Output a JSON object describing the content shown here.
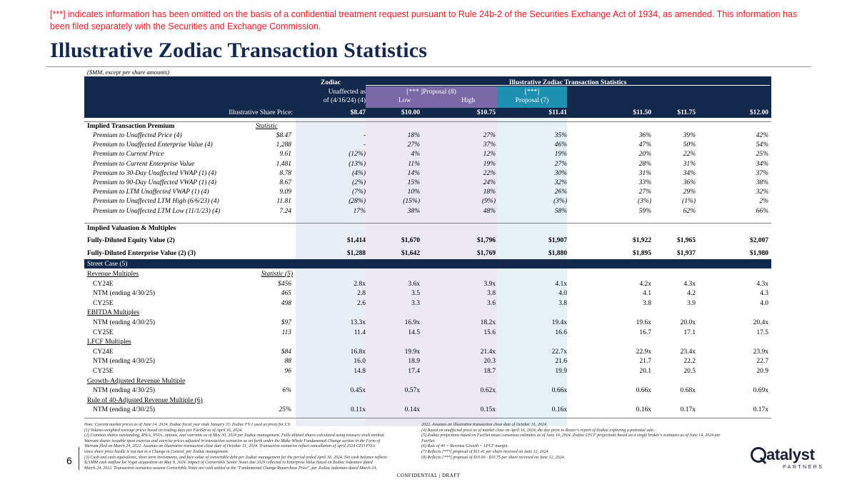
{
  "disclaimer": "[***] indicates information has been omitted on the basis of a confidential treatment request pursuant to Rule 24b-2 of the Securities Exchange Act of 1934, as amended. This information has been filed separately with the Securities and Exchange Commission.",
  "title": "Illustrative Zodiac Transaction Statistics",
  "units": "($MM, except per share amounts)",
  "header": {
    "zodiac": "Zodiac",
    "group": "Illustrative Zodiac Transaction Statistics",
    "unaffected_1": "Unaffected as",
    "unaffected_2": "of (4/16/24) (4)",
    "proposal8": "[*** ]Proposal (8)",
    "low": "Low",
    "high": "High",
    "proposal7_1": "[***]",
    "proposal7_2": "Proposal (7)",
    "price_label": "Illustrative Share Price:",
    "prices": [
      "$8.47",
      "$10.00",
      "$10.75",
      "$11.41",
      "$11.50",
      "$11.75",
      "$12.00"
    ]
  },
  "premium": {
    "title": "Implied Transaction Premium",
    "stat_label": "Statistic",
    "rows": [
      {
        "label": "Premium to Unaffected Price (4)",
        "stat": "$8.47",
        "vals": [
          "-",
          "18%",
          "27%",
          "35%",
          "36%",
          "39%",
          "42%"
        ]
      },
      {
        "label": "Premium to Unaffected Enterprise Value (4)",
        "stat": "1,288",
        "vals": [
          "-",
          "27%",
          "37%",
          "46%",
          "47%",
          "50%",
          "54%"
        ]
      },
      {
        "label": "Premium to Current Price",
        "stat": "9.61",
        "vals": [
          "(12%)",
          "4%",
          "12%",
          "19%",
          "20%",
          "22%",
          "25%"
        ]
      },
      {
        "label": "Premium to Current Enterprise Value",
        "stat": "1,481",
        "vals": [
          "(13%)",
          "11%",
          "19%",
          "27%",
          "28%",
          "31%",
          "34%"
        ]
      },
      {
        "label": "Premium to 30-Day Unaffected VWAP (1) (4)",
        "stat": "8.78",
        "vals": [
          "(4%)",
          "14%",
          "22%",
          "30%",
          "31%",
          "34%",
          "37%"
        ]
      },
      {
        "label": "Premium to 90-Day Unaffected VWAP (1) (4)",
        "stat": "8.67",
        "vals": [
          "(2%)",
          "15%",
          "24%",
          "32%",
          "33%",
          "36%",
          "38%"
        ]
      },
      {
        "label": "Premium to LTM Unaffected VWAP (1) (4)",
        "stat": "9.09",
        "vals": [
          "(7%)",
          "10%",
          "18%",
          "26%",
          "27%",
          "29%",
          "32%"
        ]
      },
      {
        "label": "Premium to Unaffected LTM High (6/6/23) (4)",
        "stat": "11.81",
        "vals": [
          "(28%)",
          "(15%)",
          "(9%)",
          "(3%)",
          "(3%)",
          "(1%)",
          "2%"
        ]
      },
      {
        "label": "Premium to Unaffected LTM Low (11/1/23) (4)",
        "stat": "7.24",
        "vals": [
          "17%",
          "38%",
          "48%",
          "58%",
          "59%",
          "62%",
          "66%"
        ]
      }
    ]
  },
  "valuation": {
    "title": "Implied Valuation & Multiples",
    "rows": [
      {
        "label": "Fully-Diluted Equity Value (2)",
        "vals": [
          "$1,414",
          "$1,670",
          "$1,796",
          "$1,907",
          "$1,922",
          "$1,965",
          "$2,007"
        ]
      },
      {
        "label": "Fully-Diluted Enterprise Value (2) (3)",
        "vals": [
          "$1,288",
          "$1,642",
          "$1,769",
          "$1,880",
          "$1,895",
          "$1,937",
          "$1,980"
        ]
      }
    ]
  },
  "street": {
    "title": "Street Case (5)",
    "groups": [
      {
        "title": "Revenue Multiples",
        "stat_label": "Statistic (5)",
        "rows": [
          {
            "label": "CY24E",
            "stat": "$456",
            "vals": [
              "2.8x",
              "3.6x",
              "3.9x",
              "4.1x",
              "4.2x",
              "4.3x",
              "4.3x"
            ]
          },
          {
            "label": "NTM (ending 4/30/25)",
            "stat": "465",
            "vals": [
              "2.8",
              "3.5",
              "3.8",
              "4.0",
              "4.1",
              "4.2",
              "4.3"
            ]
          },
          {
            "label": "CY25E",
            "stat": "498",
            "vals": [
              "2.6",
              "3.3",
              "3.6",
              "3.8",
              "3.8",
              "3.9",
              "4.0"
            ]
          }
        ]
      },
      {
        "title": "EBITDA Multiples",
        "stat_label": "",
        "rows": [
          {
            "label": "NTM (ending 4/30/25)",
            "stat": "$97",
            "vals": [
              "13.3x",
              "16.9x",
              "18.2x",
              "19.4x",
              "19.6x",
              "20.0x",
              "20.4x"
            ]
          },
          {
            "label": "CY25E",
            "stat": "113",
            "vals": [
              "11.4",
              "14.5",
              "15.6",
              "16.6",
              "16.7",
              "17.1",
              "17.5"
            ]
          }
        ]
      },
      {
        "title": "LFCF Multiples",
        "stat_label": "",
        "rows": [
          {
            "label": "CY24E",
            "stat": "$84",
            "vals": [
              "16.8x",
              "19.9x",
              "21.4x",
              "22.7x",
              "22.9x",
              "23.4x",
              "23.9x"
            ]
          },
          {
            "label": "NTM (ending 4/30/25)",
            "stat": "88",
            "vals": [
              "16.0",
              "18.9",
              "20.3",
              "21.6",
              "21.7",
              "22.2",
              "22.7"
            ]
          },
          {
            "label": "CY25E",
            "stat": "96",
            "vals": [
              "14.8",
              "17.4",
              "18.7",
              "19.9",
              "20.1",
              "20.5",
              "20.9"
            ]
          }
        ]
      },
      {
        "title": "Growth-Adjusted Revenue Multiple",
        "stat_label": "",
        "rows": [
          {
            "label": "NTM (ending 4/30/25)",
            "stat": "6%",
            "vals": [
              "0.45x",
              "0.57x",
              "0.62x",
              "0.66x",
              "0.66x",
              "0.68x",
              "0.69x"
            ]
          }
        ]
      },
      {
        "title": "Rule of 40-Adjusted Revenue Multiple (6)",
        "stat_label": "",
        "rows": [
          {
            "label": "NTM (ending 4/30/25)",
            "stat": "25%",
            "vals": [
              "0.11x",
              "0.14x",
              "0.15x",
              "0.16x",
              "0.16x",
              "0.17x",
              "0.17x"
            ]
          }
        ]
      }
    ]
  },
  "notes_left": [
    "Note:  Current market prices as of June 14, 2024. Zodiac fiscal year ends January 31. Zodiac FY-1 used as proxy for CY.",
    "(1)  Volume-weighted average prices based on trading days per FactSet as of April 16, 2024.",
    "(2) Common shares outstanding, RSUs, PSUs, options, and warrants as of May 30, 2024 per Zodiac management. Fully-diluted shares calculated using treasury stock method.",
    "Warrant shares issuable upon exercise and exercise prices adjusted in transaction scenarios as set forth under the Make-Whole Fundamental Change section in the Form of",
    "Warrant filed on March 24, 2022. Assumes an illustrative transaction close date of October 31, 2024. Transaction scenarios reflect cancellation of April 2024 CEO PSUs",
    "since share price hurdle is not met in a Change in Control, per Zodiac management.",
    "(3) Cash and cash equivalents, short term investments, and face value of convertible debt per Zodiac management for the period ended April 30, 2024. Net cash balance reflects",
    "$21MM cash outflow for Vygai acquisition on May 9, 2024. Impact of Convertible Senior Notes due 2029 reflected in Enterprise Value based on Zodiac indenture dated",
    "March 24, 2022. Transaction scenarios assume Convertible Notes are cash settled at the \"Fundamental Change Repurchase Price\", per Zodiac indenture dated March 24,"
  ],
  "notes_right": [
    "2022. Assumes an illustrative transaction close date of October 31, 2024.",
    "(4) Based on unaffected price as of market close on April 16, 2024, the day prior to Reuter's report of Zodiac exploring a potential sale.",
    "(5) Zodiac projections based on FactSet mean consensus estimates as of June 14, 2024. Zodiac LFCF projections based on a single broker's estimates as of June 14, 2024 per",
    "FactSet.",
    "(6) Rule of 40 = Revenue Growth + LFCF margin.",
    "(7) Reflects [***] proposal of $11.41 per share received on June 12, 2024.",
    "(8) Reflects [***] proposal of $10.00 - $10.75 per share received on June 12, 2024."
  ],
  "page_number": "6",
  "footer": "CONFIDENTIAL  |  DRAFT",
  "logo": {
    "word": "atalyst",
    "sub": "PARTNERS",
    "letter": "Q"
  },
  "colors": {
    "navy": "#14284b",
    "purple": "#7b68a6",
    "teal": "#1f8fb0",
    "red": "#e21b23"
  }
}
